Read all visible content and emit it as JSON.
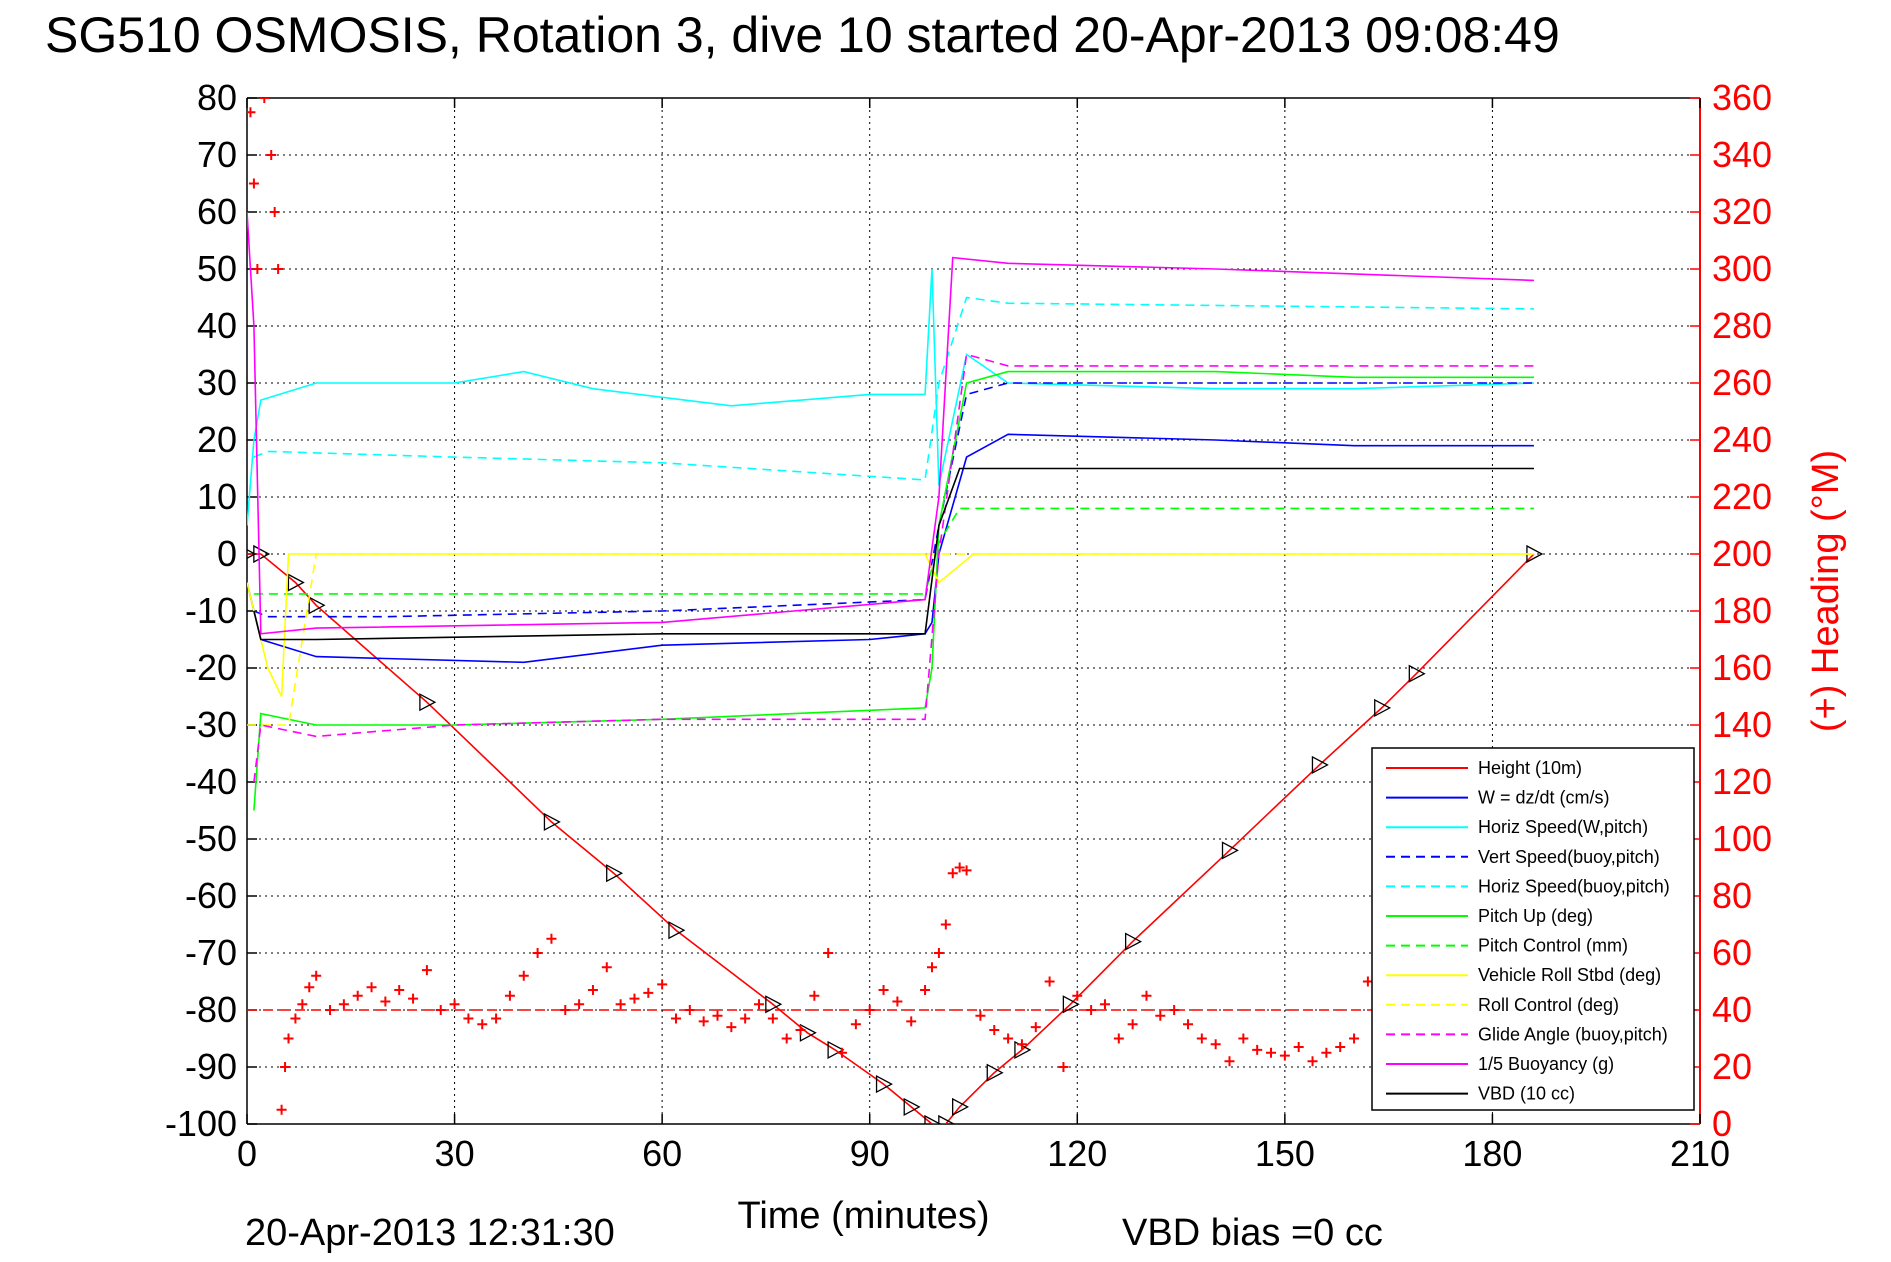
{
  "title": "SG510 OSMOSIS, Rotation 3, dive 10 started 20-Apr-2013 09:08:49",
  "footer_timestamp": "20-Apr-2013 12:31:30",
  "footer_vbd_bias": "VBD bias =0 cc",
  "colors": {
    "height": "#ff0000",
    "w": "#0000ff",
    "horiz_w": "#00ffff",
    "pitch": "#00ff00",
    "roll": "#ffff00",
    "glide": "#ff00ff",
    "buoy": "#ff00ff",
    "vbd": "#000000",
    "heading": "#ff0000"
  },
  "chart_data": {
    "type": "line",
    "title": "SG510 OSMOSIS, Rotation 3, dive 10 started 20-Apr-2013 09:08:49",
    "xlabel": "Time (minutes)",
    "ylabel": "",
    "y2label": "(+) Heading (°M)",
    "xlim": [
      0,
      210
    ],
    "ylim": [
      -100,
      80
    ],
    "y2lim": [
      0,
      360
    ],
    "xticks": [
      "0",
      "30",
      "60",
      "90",
      "120",
      "150",
      "180",
      "210"
    ],
    "yticks": [
      "80",
      "70",
      "60",
      "50",
      "40",
      "30",
      "20",
      "10",
      "0",
      "-10",
      "-20",
      "-30",
      "-40",
      "-50",
      "-60",
      "-70",
      "-80",
      "-90",
      "-100"
    ],
    "y2ticks": [
      "360",
      "340",
      "320",
      "300",
      "280",
      "260",
      "240",
      "220",
      "200",
      "180",
      "160",
      "140",
      "120",
      "100",
      "80",
      "60",
      "40",
      "20",
      "0"
    ],
    "grid": true,
    "legend_position": "bottom-right",
    "series": [
      {
        "name": "Height (10m)",
        "color": "#ff0000",
        "style": "solid",
        "marker": "triangle",
        "x": [
          0,
          2,
          7,
          10,
          26,
          44,
          53,
          62,
          76,
          81,
          85,
          92,
          96,
          99,
          101,
          103,
          108,
          112,
          119,
          128,
          142,
          155,
          164,
          169,
          186
        ],
        "y": [
          0,
          0,
          -5,
          -9,
          -26,
          -47,
          -56,
          -66,
          -79,
          -84,
          -87,
          -93,
          -97,
          -100,
          -100,
          -97,
          -91,
          -87,
          -79,
          -68,
          -52,
          -37,
          -27,
          -21,
          0
        ]
      },
      {
        "name": "W = dz/dt (cm/s)",
        "color": "#0000ff",
        "style": "solid",
        "x": [
          0,
          1,
          2,
          10,
          40,
          60,
          90,
          98,
          99,
          100,
          104,
          110,
          140,
          160,
          186
        ],
        "y": [
          -5,
          -10,
          -15,
          -18,
          -19,
          -16,
          -15,
          -14,
          -12,
          0,
          17,
          21,
          20,
          19,
          19
        ]
      },
      {
        "name": "Horiz Speed(W,pitch)",
        "color": "#00ffff",
        "style": "solid",
        "x": [
          0,
          1,
          2,
          10,
          30,
          40,
          50,
          70,
          90,
          98,
          99,
          100,
          104,
          110,
          140,
          160,
          186
        ],
        "y": [
          5,
          20,
          27,
          30,
          30,
          32,
          29,
          26,
          28,
          28,
          50,
          12,
          35,
          30,
          29,
          29,
          30
        ]
      },
      {
        "name": "Vert Speed(buoy,pitch)",
        "color": "#0000ff",
        "style": "dashed",
        "x": [
          1,
          3,
          20,
          60,
          98,
          100,
          104,
          110,
          186
        ],
        "y": [
          -10,
          -11,
          -11,
          -10,
          -8,
          5,
          28,
          30,
          30
        ]
      },
      {
        "name": "Horiz Speed(buoy,pitch)",
        "color": "#00ffff",
        "style": "dashed",
        "x": [
          1,
          3,
          30,
          60,
          98,
          100,
          104,
          110,
          186
        ],
        "y": [
          17,
          18,
          17,
          16,
          13,
          30,
          45,
          44,
          43
        ]
      },
      {
        "name": "Pitch Up (deg)",
        "color": "#00ff00",
        "style": "solid",
        "x": [
          1,
          2,
          10,
          30,
          60,
          98,
          99,
          100,
          104,
          110,
          140,
          160,
          186
        ],
        "y": [
          -45,
          -28,
          -30,
          -30,
          -29,
          -27,
          -20,
          5,
          30,
          32,
          32,
          31,
          31
        ]
      },
      {
        "name": "Pitch Control (mm)",
        "color": "#00ff00",
        "style": "dashed",
        "x": [
          1,
          2,
          20,
          60,
          98,
          100,
          103,
          130,
          186
        ],
        "y": [
          -7,
          -7,
          -7,
          -7,
          -7,
          2,
          8,
          8,
          8
        ]
      },
      {
        "name": "Vehicle Roll Stbd (deg)",
        "color": "#ffff00",
        "style": "solid",
        "x": [
          0,
          3,
          5,
          6,
          10,
          40,
          70,
          98,
          100,
          105,
          130,
          160,
          186
        ],
        "y": [
          -5,
          -20,
          -25,
          0,
          0,
          0,
          0,
          0,
          -5,
          0,
          0,
          0,
          0
        ]
      },
      {
        "name": "Roll Control (deg)",
        "color": "#ffff00",
        "style": "dashed",
        "x": [
          0,
          6,
          10,
          40,
          70,
          98,
          100,
          105,
          130,
          160,
          186
        ],
        "y": [
          -30,
          -30,
          0,
          0,
          0,
          0,
          0,
          0,
          0,
          0,
          0
        ]
      },
      {
        "name": "Glide Angle (buoy,pitch)",
        "color": "#ff00ff",
        "style": "dashed",
        "x": [
          1,
          2,
          10,
          30,
          60,
          98,
          100,
          104,
          110,
          140,
          160,
          186
        ],
        "y": [
          -40,
          -30,
          -32,
          -30,
          -29,
          -29,
          0,
          35,
          33,
          33,
          33,
          33
        ]
      },
      {
        "name": "1/5 Buoyancy (g)",
        "color": "#ff00ff",
        "style": "solid",
        "x": [
          0,
          1,
          2,
          10,
          60,
          98,
          100,
          102,
          110,
          140,
          186
        ],
        "y": [
          60,
          40,
          -14,
          -13,
          -12,
          -8,
          10,
          52,
          51,
          50,
          48
        ]
      },
      {
        "name": "VBD (10 cc)",
        "color": "#000000",
        "style": "solid",
        "x": [
          1,
          2,
          10,
          60,
          98,
          100,
          103,
          120,
          186
        ],
        "y": [
          -10,
          -15,
          -15,
          -14,
          -14,
          5,
          15,
          15,
          15
        ]
      }
    ],
    "heading_series": {
      "name": "(+) Heading",
      "axis": "right",
      "color": "#ff0000",
      "marker": "plus",
      "x": [
        0.5,
        1,
        1.5,
        2.5,
        3.5,
        4,
        4.5,
        5,
        5.5,
        6,
        7,
        8,
        9,
        10,
        12,
        14,
        16,
        18,
        20,
        22,
        24,
        26,
        28,
        30,
        32,
        34,
        36,
        38,
        40,
        42,
        44,
        46,
        48,
        50,
        52,
        54,
        56,
        58,
        60,
        62,
        64,
        66,
        68,
        70,
        72,
        74,
        76,
        78,
        80,
        82,
        84,
        86,
        88,
        90,
        92,
        94,
        96,
        98,
        99,
        100,
        101,
        102,
        103,
        104,
        106,
        108,
        110,
        112,
        114,
        116,
        118,
        120,
        122,
        124,
        126,
        128,
        130,
        132,
        134,
        136,
        138,
        140,
        142,
        144,
        146,
        148,
        150,
        152,
        154,
        156,
        158,
        160,
        162,
        164
      ],
      "y": [
        355,
        330,
        300,
        360,
        340,
        320,
        300,
        5,
        20,
        30,
        37,
        42,
        48,
        52,
        40,
        42,
        45,
        48,
        43,
        47,
        44,
        54,
        40,
        42,
        37,
        35,
        37,
        45,
        52,
        60,
        65,
        40,
        42,
        47,
        55,
        42,
        44,
        46,
        49,
        37,
        40,
        36,
        38,
        34,
        37,
        42,
        37,
        30,
        33,
        45,
        60,
        25,
        35,
        40,
        47,
        43,
        36,
        47,
        55,
        60,
        70,
        88,
        90,
        89,
        38,
        33,
        30,
        28,
        34,
        50,
        20,
        45,
        40,
        42,
        30,
        35,
        45,
        38,
        40,
        35,
        30,
        28,
        22,
        30,
        26,
        25,
        24,
        27,
        22,
        25,
        27,
        30,
        50,
        55
      ]
    },
    "heading_reference": {
      "axis": "right",
      "value": 40,
      "color": "#ff0000",
      "style": "dashed"
    }
  }
}
